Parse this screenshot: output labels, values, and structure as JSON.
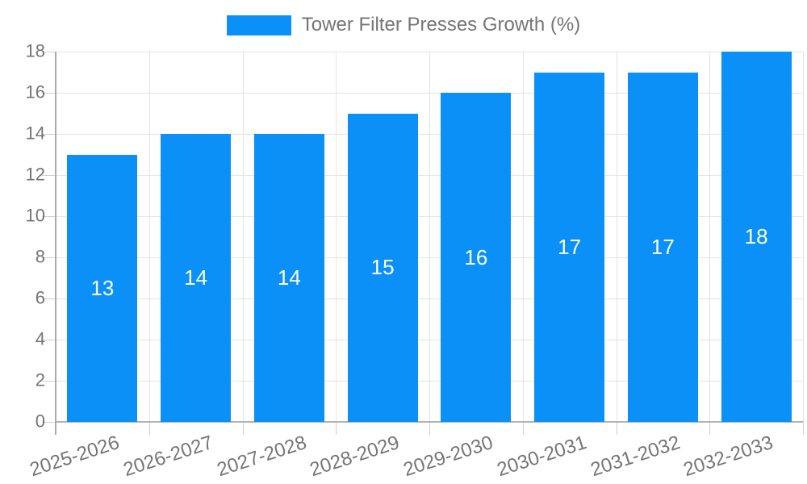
{
  "chart_data": {
    "type": "bar",
    "title": "Tower Filter Presses Growth (%)",
    "categories": [
      "2025-2026",
      "2026-2027",
      "2027-2028",
      "2028-2029",
      "2029-2030",
      "2030-2031",
      "2031-2032",
      "2032-2033"
    ],
    "values": [
      13,
      14,
      14,
      15,
      16,
      17,
      17,
      18
    ],
    "xlabel": "",
    "ylabel": "",
    "ylim": [
      0,
      18
    ],
    "yticks": [
      0,
      2,
      4,
      6,
      8,
      10,
      12,
      14,
      16,
      18
    ],
    "grid": true,
    "legend_position": "top",
    "bar_label_position": "center"
  },
  "legend": {
    "label": "Tower Filter Presses Growth (%)"
  },
  "colors": {
    "bar": "#0a90f6",
    "bar_label": "#ffffff",
    "axis_text": "#757575",
    "gridline": "#e4e4e4",
    "axis_line": "#aaaaaa",
    "tick": "#cfcfcf",
    "background": "#ffffff"
  }
}
